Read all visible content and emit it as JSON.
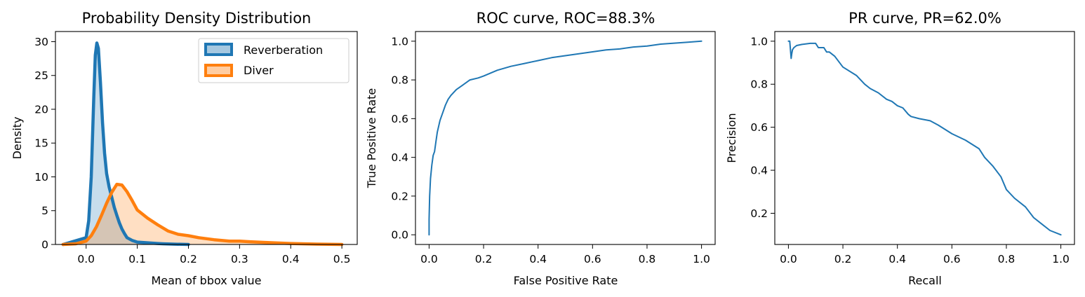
{
  "chart_data": [
    {
      "type": "area",
      "title": "Probability Density Distribution",
      "xlabel": "Mean of bbox value",
      "ylabel": "Density",
      "xlim": [
        -0.06,
        0.53
      ],
      "ylim": [
        0,
        31.5
      ],
      "xticks": [
        "0.0",
        "0.1",
        "0.2",
        "0.3",
        "0.4",
        "0.5"
      ],
      "yticks": [
        "0",
        "5",
        "10",
        "15",
        "20",
        "25",
        "30"
      ],
      "grid": false,
      "legend": {
        "position": "top-right"
      },
      "series": [
        {
          "name": "Reverberation",
          "color": "#1f77b4",
          "x": [
            -0.045,
            0.0,
            0.005,
            0.01,
            0.015,
            0.018,
            0.021,
            0.024,
            0.028,
            0.032,
            0.036,
            0.04,
            0.045,
            0.05,
            0.055,
            0.06,
            0.065,
            0.07,
            0.075,
            0.08,
            0.09,
            0.1,
            0.11,
            0.12,
            0.13,
            0.14,
            0.15,
            0.17,
            0.2
          ],
          "y": [
            0,
            1.0,
            3.5,
            10,
            22,
            28,
            29.8,
            29.0,
            24,
            18,
            13.5,
            10.5,
            8.5,
            7,
            5.5,
            4.3,
            3.2,
            2.3,
            1.6,
            1.0,
            0.6,
            0.35,
            0.3,
            0.25,
            0.2,
            0.15,
            0.1,
            0.05,
            0
          ]
        },
        {
          "name": "Diver",
          "color": "#ff7f0e",
          "x": [
            -0.045,
            -0.02,
            0.0,
            0.01,
            0.02,
            0.03,
            0.04,
            0.05,
            0.06,
            0.07,
            0.08,
            0.09,
            0.1,
            0.12,
            0.14,
            0.16,
            0.18,
            0.2,
            0.22,
            0.25,
            0.28,
            0.3,
            0.32,
            0.35,
            0.4,
            0.45,
            0.5
          ],
          "y": [
            0,
            0.1,
            0.5,
            1.3,
            2.6,
            4.3,
            6.1,
            7.7,
            8.9,
            8.8,
            7.8,
            6.5,
            5.1,
            3.9,
            2.9,
            2.0,
            1.5,
            1.3,
            1.0,
            0.7,
            0.5,
            0.5,
            0.4,
            0.3,
            0.15,
            0.05,
            0
          ]
        }
      ]
    },
    {
      "type": "line",
      "title": "ROC curve, ROC=88.3%",
      "xlabel": "False Positive Rate",
      "ylabel": "True Positive Rate",
      "xlim": [
        -0.05,
        1.05
      ],
      "ylim": [
        -0.05,
        1.05
      ],
      "xticks": [
        "0.0",
        "0.2",
        "0.4",
        "0.6",
        "0.8",
        "1.0"
      ],
      "yticks": [
        "0.0",
        "0.2",
        "0.4",
        "0.6",
        "0.8",
        "1.0"
      ],
      "grid": false,
      "series": [
        {
          "color": "#1f77b4",
          "x": [
            0.0,
            0.0,
            0.002,
            0.005,
            0.01,
            0.015,
            0.02,
            0.025,
            0.03,
            0.04,
            0.05,
            0.06,
            0.07,
            0.08,
            0.1,
            0.12,
            0.15,
            0.18,
            0.2,
            0.25,
            0.3,
            0.35,
            0.4,
            0.45,
            0.5,
            0.55,
            0.6,
            0.65,
            0.7,
            0.75,
            0.8,
            0.85,
            0.9,
            0.95,
            1.0
          ],
          "y": [
            0.0,
            0.08,
            0.2,
            0.29,
            0.36,
            0.41,
            0.43,
            0.48,
            0.53,
            0.59,
            0.63,
            0.67,
            0.7,
            0.72,
            0.75,
            0.77,
            0.8,
            0.81,
            0.82,
            0.85,
            0.87,
            0.885,
            0.9,
            0.915,
            0.925,
            0.935,
            0.945,
            0.955,
            0.96,
            0.97,
            0.975,
            0.985,
            0.99,
            0.995,
            1.0
          ]
        }
      ]
    },
    {
      "type": "line",
      "title": "PR curve, PR=62.0%",
      "xlabel": "Recall",
      "ylabel": "Precision",
      "xlim": [
        -0.05,
        1.05
      ],
      "ylim": [
        0.055,
        1.045
      ],
      "xticks": [
        "0.0",
        "0.2",
        "0.4",
        "0.6",
        "0.8",
        "1.0"
      ],
      "yticks": [
        "0.2",
        "0.4",
        "0.6",
        "0.8",
        "1.0"
      ],
      "grid": false,
      "series": [
        {
          "color": "#1f77b4",
          "x": [
            0.0,
            0.005,
            0.01,
            0.012,
            0.015,
            0.02,
            0.03,
            0.05,
            0.08,
            0.1,
            0.11,
            0.13,
            0.14,
            0.15,
            0.17,
            0.2,
            0.25,
            0.28,
            0.3,
            0.33,
            0.36,
            0.38,
            0.4,
            0.42,
            0.44,
            0.45,
            0.48,
            0.52,
            0.55,
            0.6,
            0.65,
            0.7,
            0.72,
            0.75,
            0.78,
            0.8,
            0.83,
            0.87,
            0.9,
            0.93,
            0.96,
            1.0
          ],
          "y": [
            1.0,
            1.0,
            0.92,
            0.94,
            0.96,
            0.97,
            0.98,
            0.985,
            0.99,
            0.99,
            0.97,
            0.97,
            0.95,
            0.95,
            0.93,
            0.88,
            0.84,
            0.8,
            0.78,
            0.76,
            0.73,
            0.72,
            0.7,
            0.69,
            0.66,
            0.65,
            0.64,
            0.63,
            0.61,
            0.57,
            0.54,
            0.5,
            0.46,
            0.42,
            0.37,
            0.31,
            0.27,
            0.23,
            0.18,
            0.15,
            0.12,
            0.1
          ]
        }
      ]
    }
  ]
}
